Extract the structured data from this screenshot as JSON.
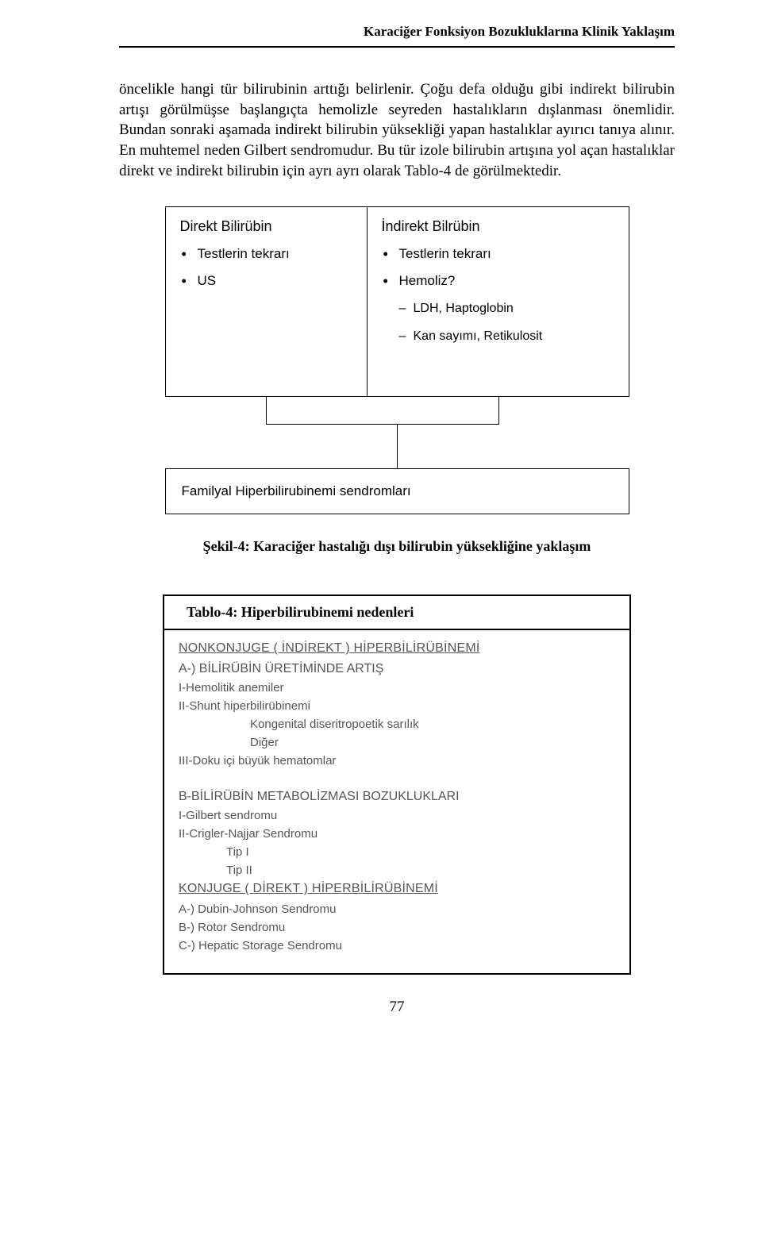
{
  "header": "Karaciğer Fonksiyon Bozukluklarına Klinik Yaklaşım",
  "paragraph": "öncelikle hangi tür bilirubinin arttığı belirlenir. Çoğu defa olduğu gibi indirekt bilirubin artışı görülmüşse başlangıçta hemolizle seyreden hastalıkların dışlanması önemlidir. Bundan sonraki aşamada indirekt bilirubin yüksekliği yapan hastalıklar ayırıcı tanıya alınır. En muhtemel neden Gilbert sendromudur. Bu tür izole bilirubin artışına yol açan hastalıklar direkt ve indirekt bilirubin için ayrı ayrı olarak Tablo-4 de görülmektedir.",
  "flowchart": {
    "left": {
      "title": "Direkt Bilirübin",
      "items": [
        "Testlerin tekrarı",
        "US"
      ]
    },
    "right": {
      "title": "İndirekt Bilrübin",
      "items": [
        "Testlerin tekrarı",
        "Hemoliz?"
      ],
      "sub": [
        "LDH, Haptoglobin",
        "Kan sayımı, Retikulosit"
      ]
    },
    "bottom": "Familyal Hiperbilirubinemi sendromları"
  },
  "figcaption": "Şekil-4: Karaciğer hastalığı dışı bilirubin yüksekliğine yaklaşım",
  "table4": {
    "caption": "Tablo-4: Hiperbilirubinemi nedenleri",
    "h1": "NONKONJUGE ( İNDİREKT ) HİPERBİLİRÜBİNEMİ",
    "a1": "A-) BİLİRÜBİN ÜRETİMİNDE ARTIŞ",
    "a1_l1": "I-Hemolitik anemiler",
    "a1_l2": "II-Shunt hiperbilirübinemi",
    "a1_l2_s1": "Kongenital diseritropoetik sarılık",
    "a1_l2_s2": "Diğer",
    "a1_l3": "III-Doku içi büyük hematomlar",
    "b1": "B-BİLİRÜBİN METABOLİZMASI BOZUKLUKLARI",
    "b1_l1": "I-Gilbert sendromu",
    "b1_l2": "II-Crigler-Najjar Sendromu",
    "b1_l2_s1": "Tip I",
    "b1_l2_s2": "Tip II",
    "h2": "KONJUGE ( DİREKT ) HİPERBİLİRÜBİNEMİ",
    "c_a": "A-) Dubin-Johnson Sendromu",
    "c_b": "B-) Rotor Sendromu",
    "c_c": "C-) Hepatic Storage Sendromu"
  },
  "pagenum": "77"
}
